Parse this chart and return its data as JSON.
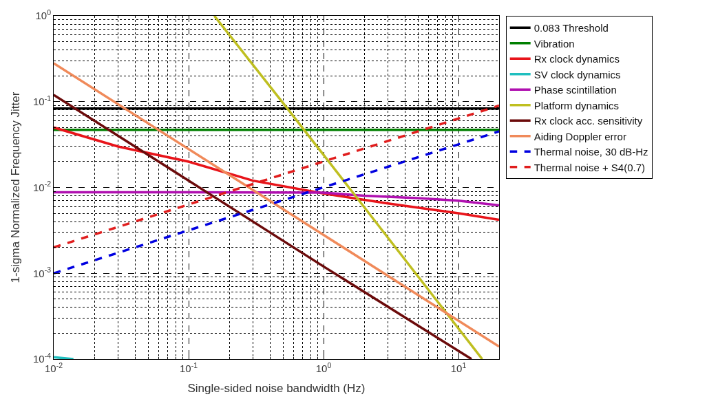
{
  "chart_data": {
    "type": "line",
    "xlabel": "Single-sided noise bandwidth (Hz)",
    "ylabel": "1-sigma Normalized Frequency Jitter",
    "log": "xy",
    "grid": true,
    "legend": "right",
    "xlim": [
      0.01,
      20
    ],
    "ylim": [
      0.0001,
      1
    ],
    "xticks": [
      {
        "value": 0.01,
        "label": "10$^{-2}$"
      },
      {
        "value": 0.1,
        "label": "10$^{-1}$"
      },
      {
        "value": 1,
        "label": "10$^{0}$"
      },
      {
        "value": 10,
        "label": "10$^{1}$"
      }
    ],
    "yticks": [
      {
        "value": 0.0001,
        "label": "10$^{-4}$"
      },
      {
        "value": 0.001,
        "label": "10$^{-3}$"
      },
      {
        "value": 0.01,
        "label": "10$^{-2}$"
      },
      {
        "value": 0.1,
        "label": "10$^{-1}$"
      },
      {
        "value": 1,
        "label": "10$^{0}$"
      }
    ],
    "series": [
      {
        "name": "0.083 Threshold",
        "color": "#000000",
        "x": [
          0.01,
          20
        ],
        "values": [
          0.083,
          0.083
        ]
      },
      {
        "name": "Vibration",
        "color": "#007f00",
        "x": [
          0.01,
          20
        ],
        "values": [
          0.047,
          0.047
        ]
      },
      {
        "name": "Rx clock dynamics",
        "color": "#e8141a",
        "x": [
          0.01,
          0.03,
          0.1,
          0.3,
          1,
          3,
          10,
          20
        ],
        "values": [
          0.05,
          0.03,
          0.02,
          0.012,
          0.0085,
          0.0065,
          0.005,
          0.0042
        ]
      },
      {
        "name": "SV clock dynamics",
        "color": "#1fbfbf",
        "x": [
          0.01,
          0.014
        ],
        "values": [
          0.000105,
          0.0001
        ]
      },
      {
        "name": "Phase scintillation",
        "color": "#b010b0",
        "x": [
          0.01,
          0.1,
          1,
          2,
          5,
          10,
          20
        ],
        "values": [
          0.0088,
          0.0088,
          0.0087,
          0.008,
          0.0075,
          0.007,
          0.0062
        ]
      },
      {
        "name": "Platform dynamics",
        "color": "#bfbf20",
        "x": [
          0.155,
          0.55,
          1,
          15
        ],
        "values": [
          1,
          0.08,
          0.024,
          0.0001
        ]
      },
      {
        "name": "Rx clock acc. sensitivity",
        "color": "#6b0a0a",
        "x": [
          0.01,
          1,
          12.5
        ],
        "values": [
          0.12,
          0.0012,
          0.0001
        ]
      },
      {
        "name": "Aiding Doppler error",
        "color": "#f08a5a",
        "x": [
          0.01,
          1,
          20
        ],
        "values": [
          0.28,
          0.0028,
          0.00014
        ]
      },
      {
        "name": "Thermal noise, 30 dB-Hz",
        "color": "#0000e0",
        "line_style": "dashed",
        "x": [
          0.01,
          20
        ],
        "values": [
          0.001,
          0.045
        ]
      },
      {
        "name": "Thermal noise + S4(0.7)",
        "color": "#e01e1e",
        "line_style": "dashed",
        "x": [
          0.01,
          20
        ],
        "values": [
          0.002,
          0.09
        ]
      }
    ]
  }
}
